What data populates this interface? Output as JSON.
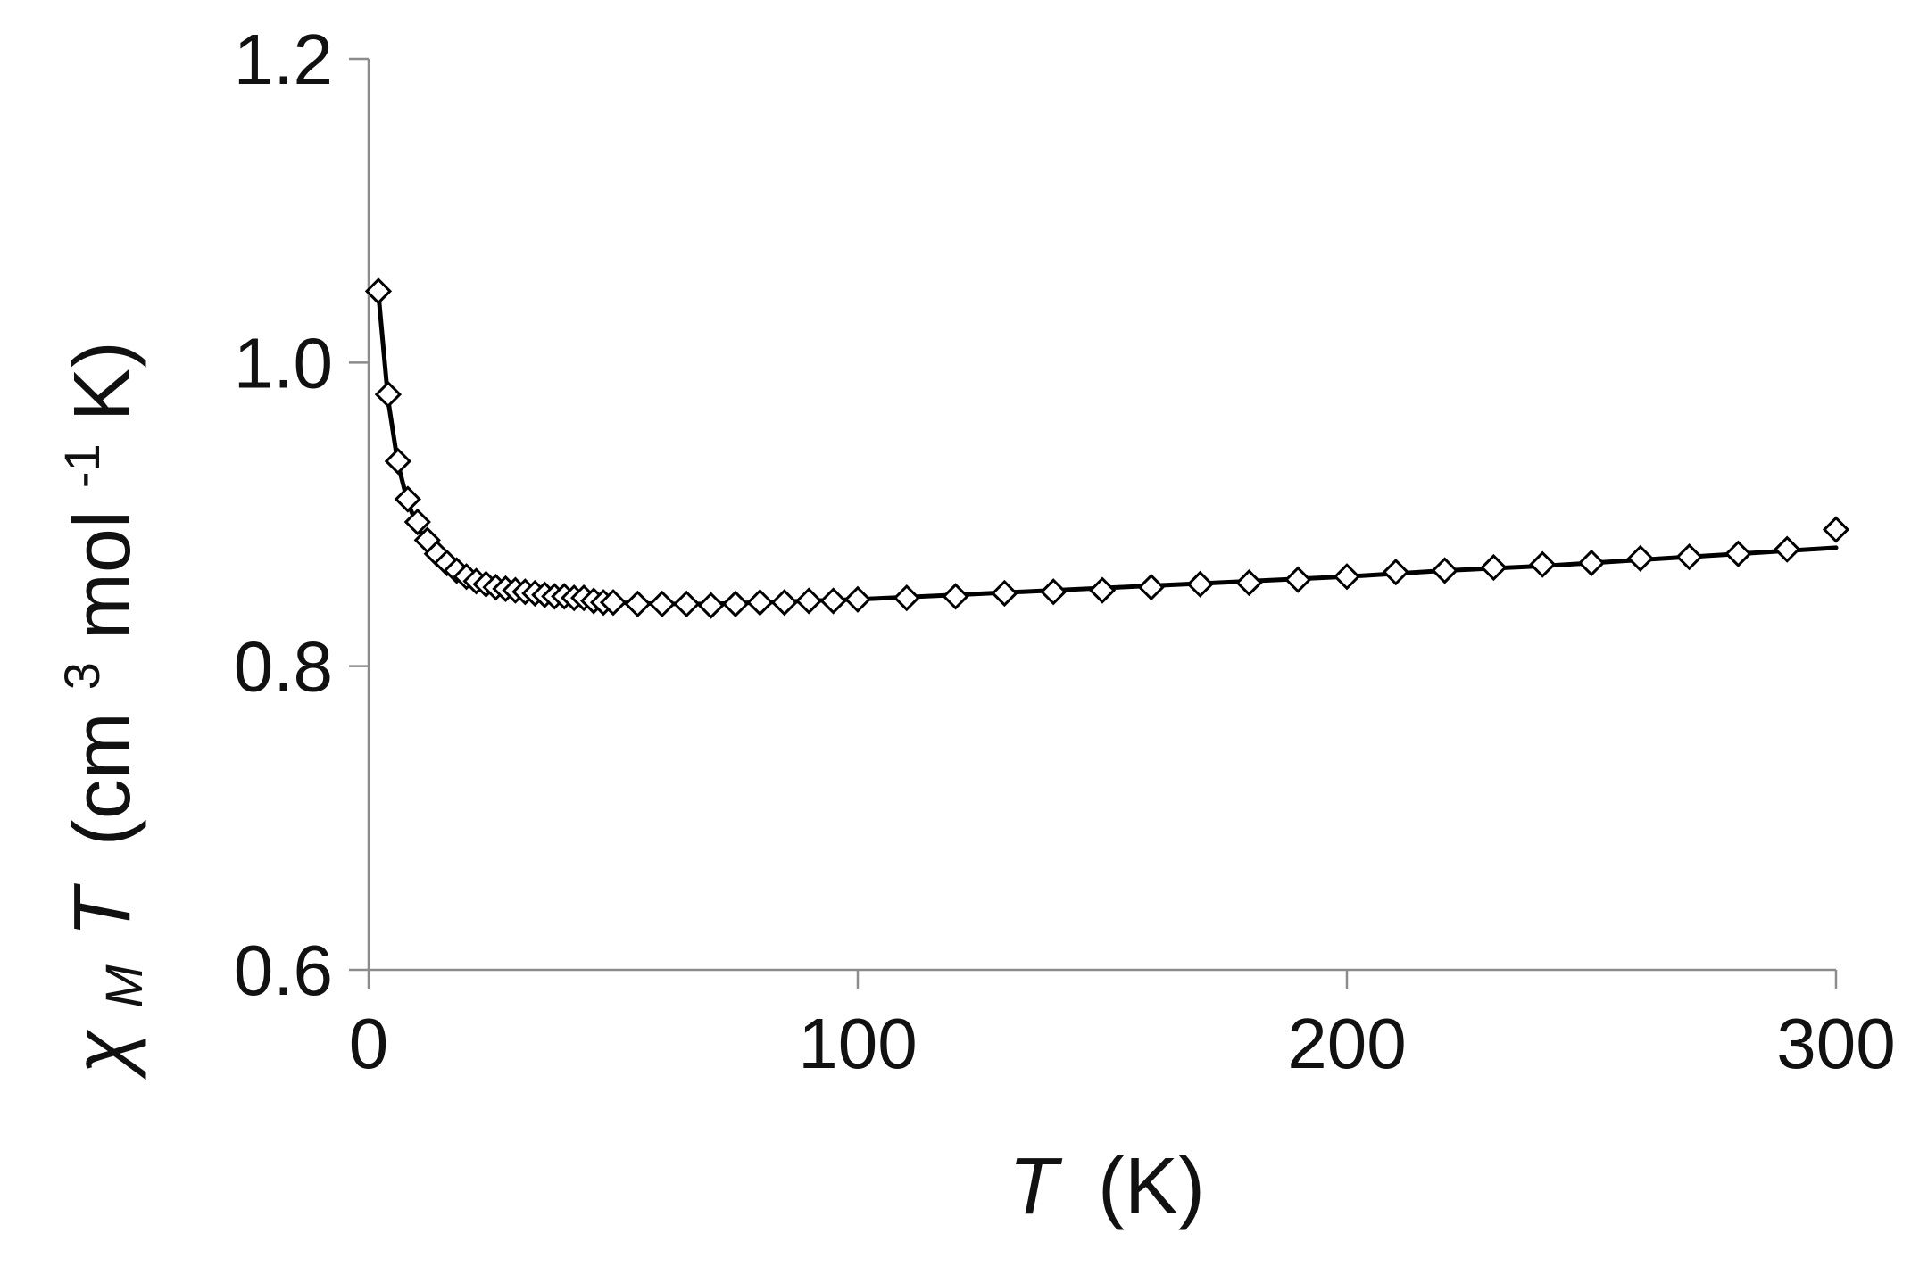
{
  "chart_data": {
    "type": "scatter",
    "title": "",
    "xlabel": {
      "symbol": "T",
      "unit": "(K)"
    },
    "ylabel": {
      "symbol": "χ",
      "subscript": "M",
      "symbol2": "T",
      "unit_prefix": "(cm",
      "unit_sup1": "3",
      "unit_mid": "mol",
      "unit_sup2": "-1",
      "unit_suffix": "K)"
    },
    "xlim": [
      0,
      300
    ],
    "ylim": [
      0.6,
      1.2
    ],
    "xticks": [
      0,
      100,
      200,
      300
    ],
    "yticks": [
      0.6,
      0.8,
      1.0,
      1.2
    ],
    "xtick_labels": [
      "0",
      "100",
      "200",
      "300"
    ],
    "ytick_labels": [
      "0.6",
      "0.8",
      "1.0",
      "1.2"
    ],
    "grid": false,
    "legend": "none",
    "series": [
      {
        "kind": "markers",
        "marker": "open-diamond",
        "x": [
          2,
          4,
          6,
          8,
          10,
          12,
          14,
          16,
          18,
          20,
          22,
          24,
          26,
          28,
          30,
          32,
          34,
          36,
          38,
          40,
          42,
          44,
          46,
          48,
          50,
          55,
          60,
          65,
          70,
          75,
          80,
          85,
          90,
          95,
          100,
          110,
          120,
          130,
          140,
          150,
          160,
          170,
          180,
          190,
          200,
          210,
          220,
          230,
          240,
          250,
          260,
          270,
          280,
          290,
          300
        ],
        "y": [
          1.047,
          0.979,
          0.935,
          0.91,
          0.895,
          0.883,
          0.874,
          0.868,
          0.863,
          0.859,
          0.856,
          0.854,
          0.852,
          0.851,
          0.85,
          0.849,
          0.848,
          0.847,
          0.846,
          0.846,
          0.845,
          0.845,
          0.843,
          0.842,
          0.842,
          0.841,
          0.841,
          0.841,
          0.84,
          0.841,
          0.842,
          0.842,
          0.843,
          0.843,
          0.844,
          0.845,
          0.846,
          0.848,
          0.849,
          0.85,
          0.852,
          0.854,
          0.855,
          0.857,
          0.859,
          0.862,
          0.863,
          0.865,
          0.867,
          0.868,
          0.871,
          0.872,
          0.874,
          0.877,
          0.89
        ]
      },
      {
        "kind": "line",
        "x": [
          2,
          4,
          6,
          8,
          10,
          12,
          14,
          16,
          18,
          20,
          24,
          28,
          32,
          36,
          40,
          45,
          50,
          60,
          70,
          80,
          100,
          120,
          140,
          160,
          180,
          200,
          220,
          240,
          260,
          280,
          300
        ],
        "y": [
          1.045,
          0.975,
          0.933,
          0.908,
          0.892,
          0.88,
          0.872,
          0.866,
          0.861,
          0.858,
          0.853,
          0.85,
          0.848,
          0.846,
          0.845,
          0.843,
          0.842,
          0.841,
          0.841,
          0.842,
          0.844,
          0.847,
          0.85,
          0.853,
          0.856,
          0.859,
          0.863,
          0.866,
          0.87,
          0.874,
          0.878
        ]
      }
    ]
  }
}
